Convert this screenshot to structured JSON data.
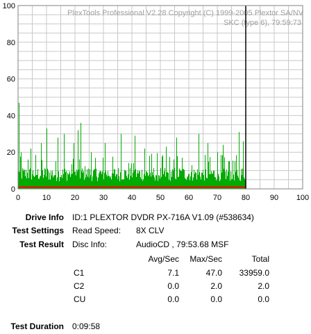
{
  "chart_data": {
    "type": "bar",
    "watermark_line1": "PlexTools Professional V2.28 Copyright (C) 1999-2005 Plextor SA/NV",
    "watermark_line2": "SKC (type 6), 79:59:73",
    "xlim": [
      0,
      100
    ],
    "ylim": [
      0,
      100
    ],
    "x_ticks": [
      0,
      10,
      20,
      30,
      40,
      50,
      60,
      70,
      80,
      90,
      100
    ],
    "y_ticks": [
      0,
      20,
      40,
      60,
      80,
      100
    ],
    "grid": true,
    "disc_end_minutes": 80,
    "marker_x": 80,
    "colors": {
      "c1": "#00aa00",
      "c2": "#ff0000",
      "marker": "#000000",
      "grid": "#c8c8c8"
    },
    "series": [
      {
        "name": "C1",
        "x_start": 0,
        "x_end": 80,
        "baseline": 7,
        "peaks": [
          [
            0.2,
            47
          ],
          [
            1,
            20
          ],
          [
            3.5,
            16
          ],
          [
            4.5,
            22
          ],
          [
            8,
            25
          ],
          [
            10,
            33
          ],
          [
            14,
            28
          ],
          [
            16,
            30
          ],
          [
            19.5,
            25
          ],
          [
            21,
            32
          ],
          [
            22,
            36
          ],
          [
            25.5,
            20
          ],
          [
            30.5,
            25
          ],
          [
            36,
            30
          ],
          [
            41,
            29
          ],
          [
            44.5,
            22
          ],
          [
            46,
            18
          ],
          [
            52,
            23
          ],
          [
            55.5,
            28
          ],
          [
            57.5,
            17
          ],
          [
            63.5,
            30
          ],
          [
            66.5,
            25
          ],
          [
            70,
            20
          ],
          [
            72,
            24
          ],
          [
            74,
            15
          ],
          [
            77.5,
            31
          ],
          [
            79,
            26
          ]
        ]
      },
      {
        "name": "C2",
        "x_start": 0,
        "x_end": 80,
        "value": 1
      }
    ]
  },
  "info": {
    "drive_info_label": "Drive Info",
    "drive_info_value": "ID:1 PLEXTOR DVDR PX-716A V1.09 (#538634)",
    "test_settings_label": "Test Settings",
    "read_speed_label": "Read Speed:",
    "read_speed_value": "8X CLV",
    "test_result_label": "Test Result",
    "disc_info_label": "Disc Info:",
    "disc_info_value": "AudioCD , 79:53.68 MSF",
    "test_duration_label": "Test Duration",
    "test_duration_value": "0:09:58"
  },
  "results": {
    "headers": [
      "Avg/Sec",
      "Max/Sec",
      "Total"
    ],
    "rows": [
      {
        "name": "C1",
        "avg": "7.1",
        "max": "47.0",
        "total": "33959.0"
      },
      {
        "name": "C2",
        "avg": "0.0",
        "max": "2.0",
        "total": "2.0"
      },
      {
        "name": "CU",
        "avg": "0.0",
        "max": "0.0",
        "total": "0.0"
      }
    ]
  }
}
